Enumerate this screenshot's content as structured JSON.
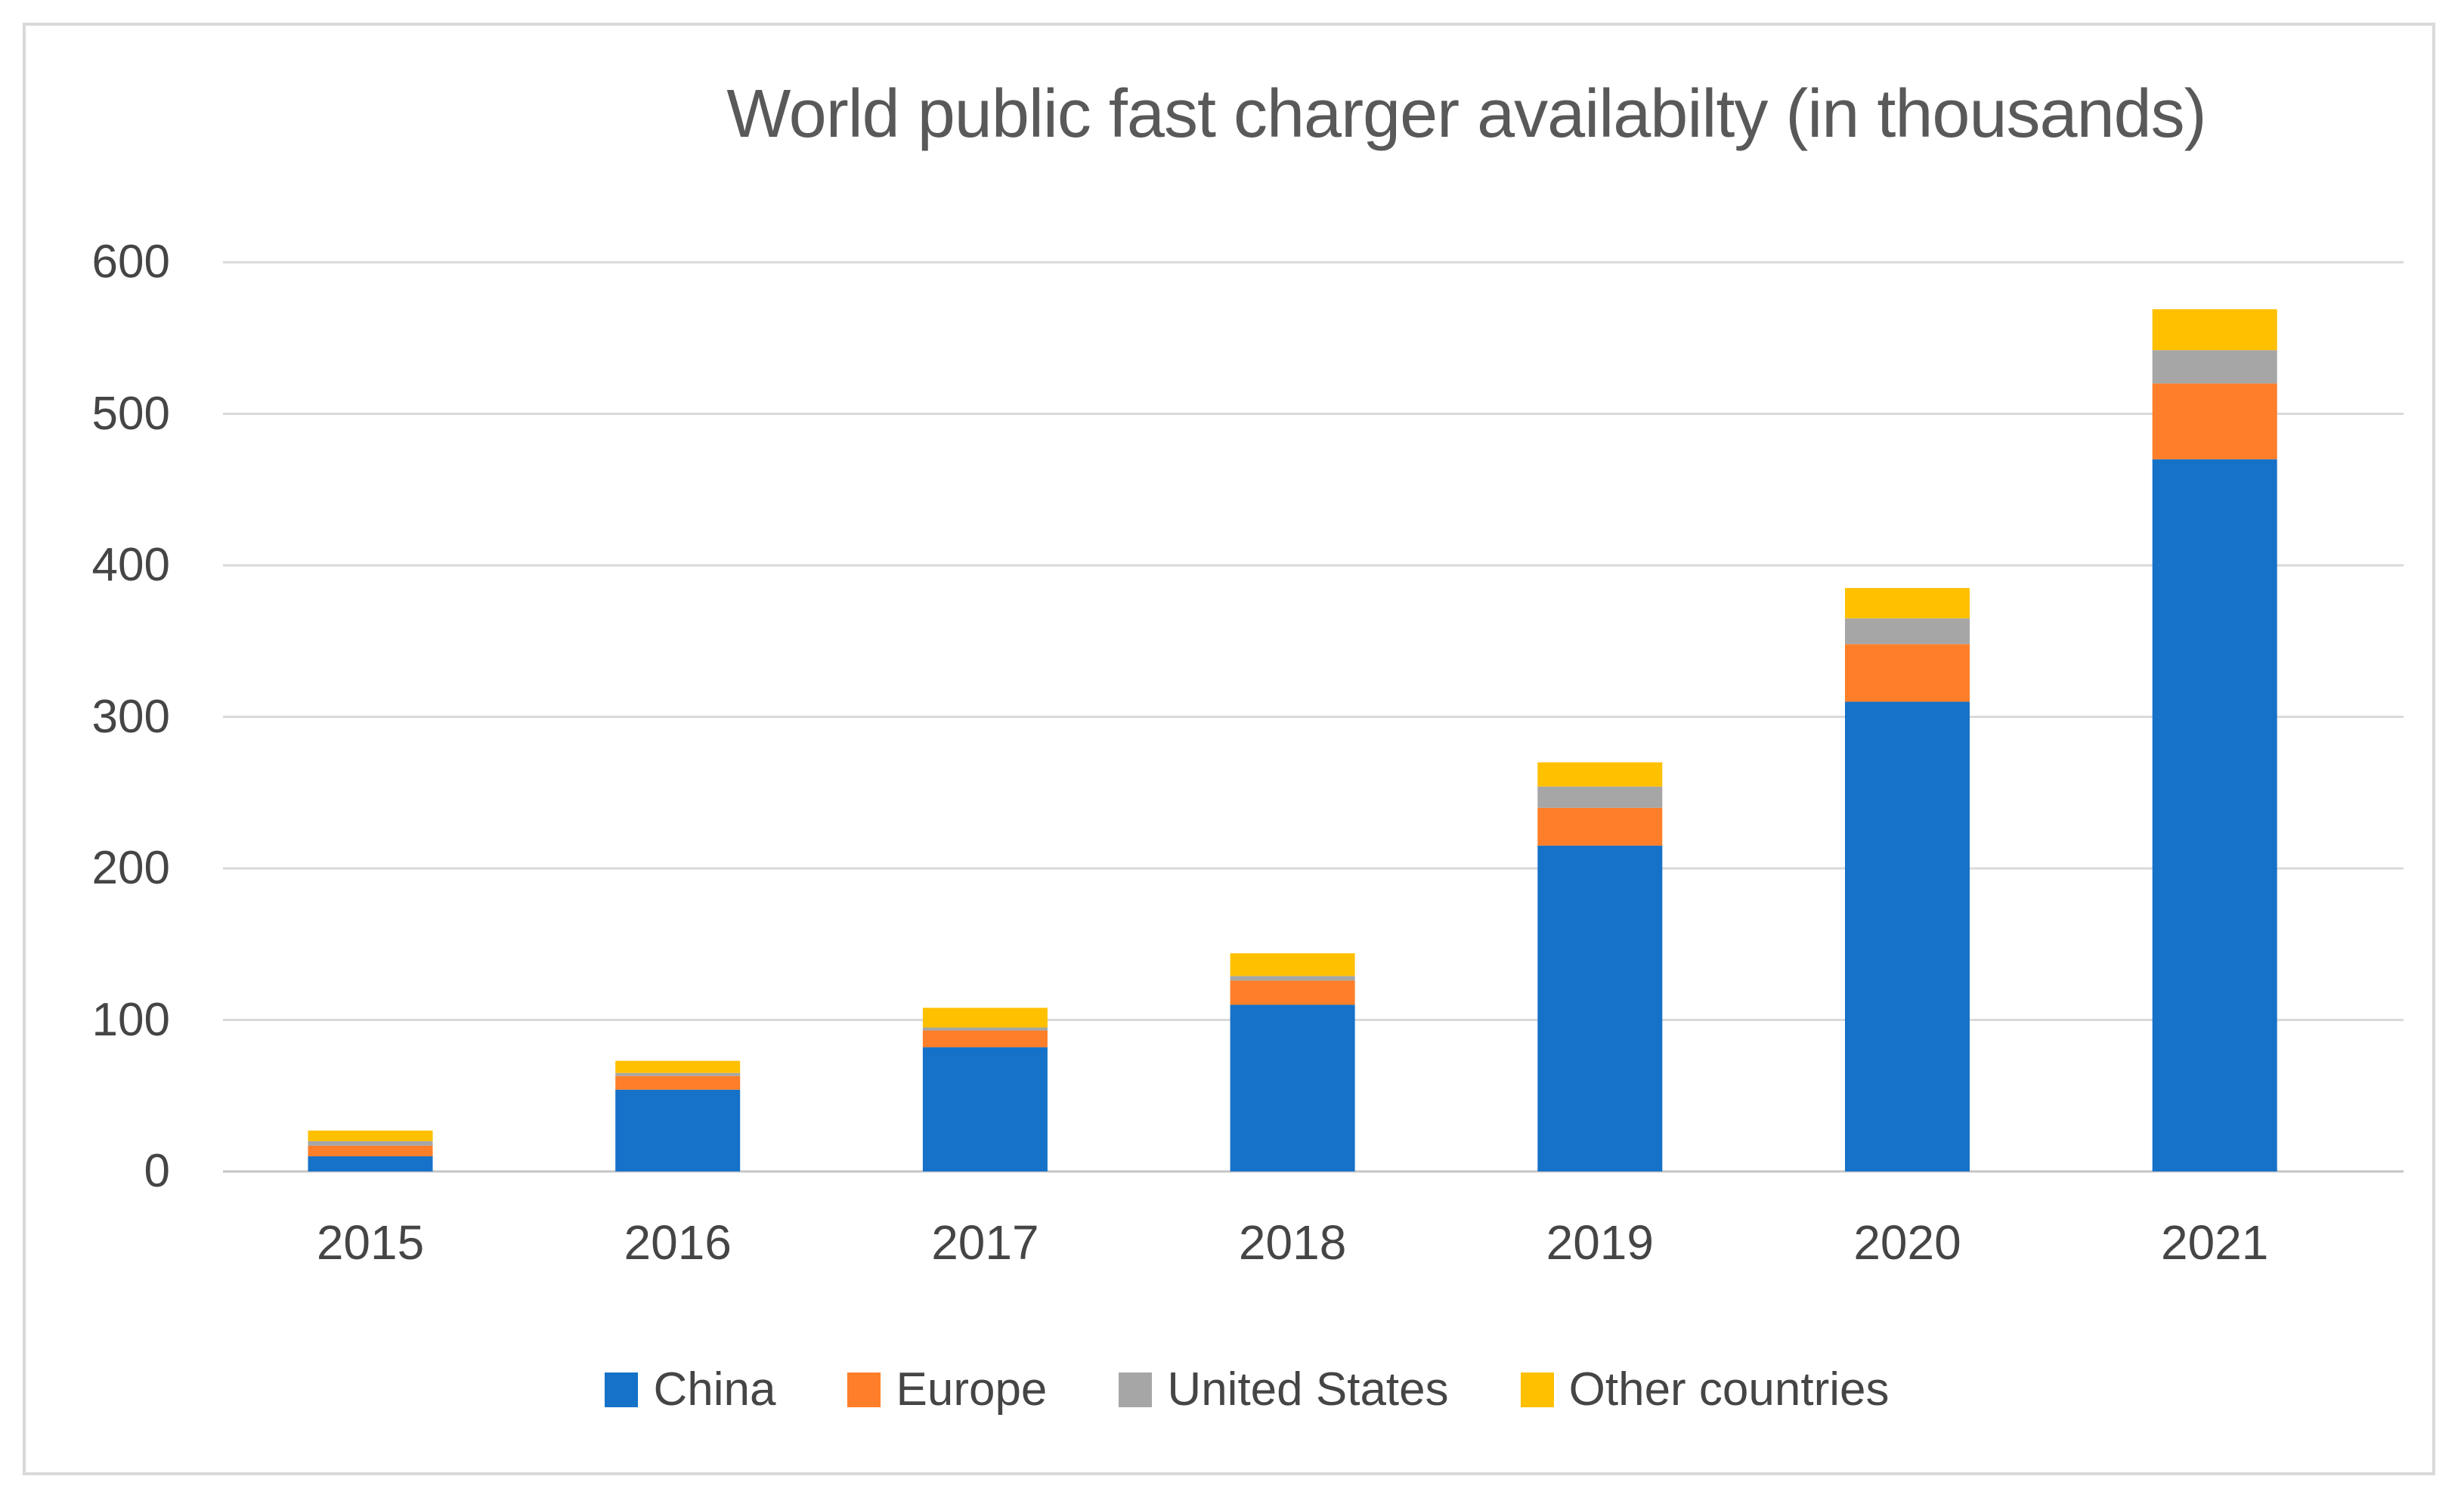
{
  "chart_data": {
    "type": "bar",
    "stacked": true,
    "title": "World public fast charger availabilty (in thousands)",
    "categories": [
      "2015",
      "2016",
      "2017",
      "2018",
      "2019",
      "2020",
      "2021"
    ],
    "series": [
      {
        "name": "China",
        "color": "#1672C8",
        "values": [
          10,
          54,
          82,
          110,
          215,
          310,
          470
        ]
      },
      {
        "name": "Europe",
        "color": "#FF7E29",
        "values": [
          7,
          9,
          11,
          16,
          25,
          38,
          50
        ]
      },
      {
        "name": "United States",
        "color": "#A6A6A6",
        "values": [
          3,
          2,
          2,
          3,
          14,
          17,
          22
        ]
      },
      {
        "name": "Other countries",
        "color": "#FFC000",
        "values": [
          7,
          8,
          13,
          15,
          16,
          20,
          27
        ]
      }
    ],
    "totals": [
      27,
      73,
      108,
      144,
      270,
      385,
      569
    ],
    "xlabel": "",
    "ylabel": "",
    "ylim": [
      0,
      600
    ],
    "yticks": [
      "0",
      "100",
      "200",
      "300",
      "400",
      "500",
      "600"
    ],
    "grid": true,
    "legend_position": "bottom",
    "colors": {
      "gridline": "#D9D9D9",
      "axis_line": "#C6C6C6",
      "title_text": "#595959",
      "label_text": "#454545",
      "frame_border": "#D9D9D9",
      "background": "#FFFFFF"
    }
  }
}
